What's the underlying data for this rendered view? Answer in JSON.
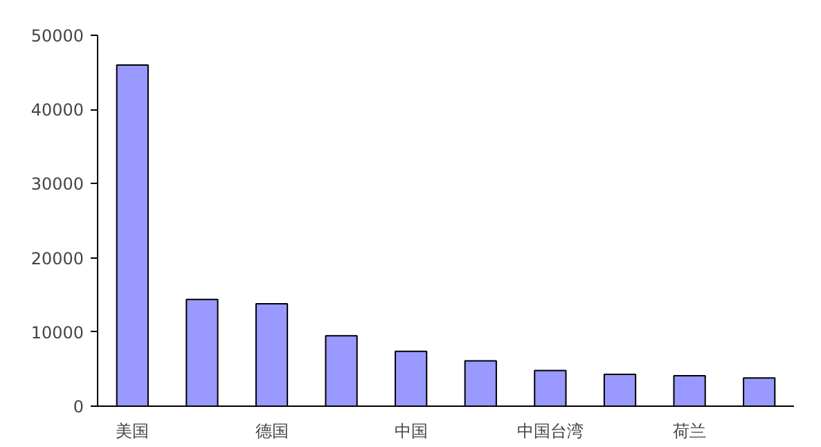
{
  "chart_data": {
    "type": "bar",
    "categories": [
      "美国",
      null,
      "德国",
      null,
      "中国",
      null,
      "中国台湾",
      null,
      "荷兰",
      null
    ],
    "values": [
      46000,
      14400,
      13800,
      9500,
      7400,
      6100,
      4800,
      4300,
      4100,
      3800
    ],
    "color": "#9999ff",
    "ylim": [
      0,
      50000
    ],
    "yticks": [
      0,
      10000,
      20000,
      30000,
      40000,
      50000
    ],
    "grid": false
  }
}
